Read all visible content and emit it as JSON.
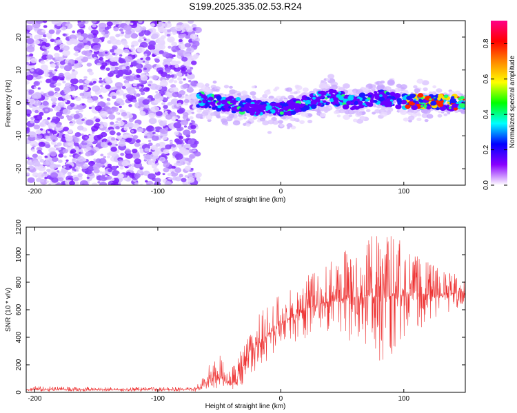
{
  "title": "S199.2025.335.02.53.R24",
  "colors": {
    "snr_line": "#ee3333",
    "axis": "#000000",
    "background": "#ffffff"
  },
  "chart_data": [
    {
      "type": "heatmap",
      "title": "S199.2025.335.02.53.R24",
      "xlabel": "Height of straight line (km)",
      "ylabel": "Frequency (Hz)",
      "xlim": [
        -207,
        150
      ],
      "ylim": [
        -25,
        25
      ],
      "x_ticks": [
        -200,
        -100,
        0,
        100
      ],
      "y_ticks": [
        -20,
        -10,
        0,
        10,
        20
      ],
      "noise_region_x": [
        -207,
        -67
      ],
      "signal_onset_km": -67,
      "ridge_frequency_hz": {
        "x": [
          -67,
          -50,
          -30,
          -10,
          0,
          10,
          20,
          30,
          40,
          50,
          60,
          70,
          80,
          90,
          100,
          110,
          120,
          130,
          140,
          150
        ],
        "y": [
          1,
          0,
          -1,
          -2,
          -2,
          -1,
          0,
          1,
          2,
          1,
          0,
          1,
          2,
          1,
          0.5,
          0.5,
          0.3,
          0.2,
          0.1,
          0
        ]
      },
      "colorbar": {
        "label": "Normalized spectral amplitude",
        "range": [
          0,
          0.93
        ],
        "ticks": [
          0.0,
          0.2,
          0.4,
          0.6,
          0.8
        ],
        "tick_labels": [
          "0.0",
          "0.2",
          "0.4",
          "0.6",
          "0.8"
        ],
        "colormap": [
          "#ffffff",
          "#8800ff",
          "#0000ff",
          "#00ffff",
          "#00ff00",
          "#ffff00",
          "#ff8800",
          "#ff0000",
          "#ff0088"
        ]
      }
    },
    {
      "type": "line",
      "xlabel": "Height of straight line (km)",
      "ylabel": "SNR (10 * v/v)",
      "xlim": [
        -207,
        150
      ],
      "ylim": [
        0,
        1200
      ],
      "x_ticks": [
        -200,
        -100,
        0,
        100
      ],
      "y_ticks": [
        0,
        200,
        400,
        600,
        800,
        1000,
        1200
      ],
      "series": [
        {
          "name": "SNR",
          "envelope_x": [
            -207,
            -150,
            -100,
            -70,
            -65,
            -55,
            -50,
            -45,
            -40,
            -35,
            -30,
            -25,
            -20,
            -15,
            -10,
            -5,
            0,
            10,
            20,
            30,
            40,
            50,
            60,
            70,
            80,
            90,
            100,
            110,
            120,
            130,
            140,
            150
          ],
          "mean": [
            20,
            20,
            20,
            22,
            40,
            120,
            110,
            70,
            60,
            100,
            220,
            300,
            340,
            380,
            420,
            460,
            500,
            560,
            600,
            640,
            660,
            680,
            690,
            700,
            700,
            700,
            710,
            720,
            710,
            700,
            720,
            730
          ],
          "upper": [
            45,
            40,
            40,
            40,
            90,
            320,
            300,
            200,
            180,
            250,
            420,
            520,
            560,
            600,
            640,
            680,
            720,
            780,
            850,
            900,
            1000,
            1050,
            1080,
            1150,
            1200,
            1190,
            1100,
            1000,
            950,
            900,
            880,
            850
          ],
          "lower": [
            5,
            5,
            5,
            5,
            10,
            30,
            30,
            20,
            20,
            30,
            60,
            100,
            150,
            180,
            200,
            250,
            300,
            350,
            380,
            420,
            420,
            400,
            350,
            200,
            150,
            250,
            380,
            450,
            500,
            550,
            600,
            620
          ]
        }
      ]
    }
  ]
}
